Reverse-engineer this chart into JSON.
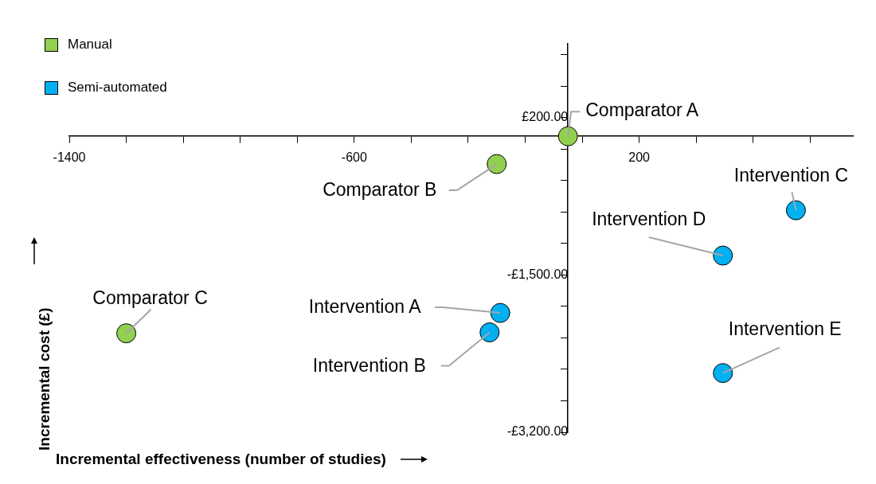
{
  "chart_data": {
    "type": "scatter",
    "xlabel": "Incremental effectiveness (number of studies)",
    "ylabel": "Incremental cost (£)",
    "series": [
      {
        "name": "Manual",
        "color": "#92d050",
        "x": [
          0,
          -200,
          -1240
        ],
        "values": [
          0,
          -300,
          -2130
        ]
      },
      {
        "name": "Semi-automated",
        "color": "#00b0f0",
        "x": [
          -190,
          -220,
          640,
          435,
          435
        ],
        "values": [
          -1910,
          -2120,
          -800,
          -1290,
          -2560
        ]
      }
    ],
    "xlim": [
      -1400,
      800
    ],
    "ylim": [
      -3200,
      1000
    ],
    "xticks": [
      -1400,
      {
        "value": -1240,
        "label": null
      },
      {
        "value": -1080,
        "label": null
      },
      {
        "value": -920,
        "label": null
      },
      {
        "value": -760,
        "label": null
      },
      -600,
      {
        "value": -440,
        "label": null
      },
      {
        "value": -280,
        "label": null
      },
      {
        "value": -120,
        "label": null
      },
      {
        "value": 40,
        "label": null
      },
      200,
      {
        "value": 360,
        "label": null
      },
      {
        "value": 520,
        "label": null
      },
      {
        "value": 680,
        "label": null
      }
    ],
    "yticks": [
      {
        "value": 880,
        "label": null
      },
      {
        "value": 540,
        "label": null
      },
      {
        "value": 200,
        "label": "£200.00"
      },
      {
        "value": -140,
        "label": null
      },
      {
        "value": -480,
        "label": null
      },
      {
        "value": -820,
        "label": null
      },
      {
        "value": -1160,
        "label": null
      },
      {
        "value": -1500,
        "label": "-£1,500.00"
      },
      {
        "value": -1840,
        "label": null
      },
      {
        "value": -2180,
        "label": null
      },
      {
        "value": -2520,
        "label": null
      },
      {
        "value": -2860,
        "label": null
      },
      {
        "value": -3200,
        "label": "-£3,200.00"
      }
    ],
    "annotations": [
      {
        "text": "Comparator A",
        "x": 0,
        "y": 0
      },
      {
        "text": "Comparator B",
        "x": -200,
        "y": -300
      },
      {
        "text": "Comparator C",
        "x": -1240,
        "y": -2130
      },
      {
        "text": "Intervention A",
        "x": -190,
        "y": -1910
      },
      {
        "text": "Intervention B",
        "x": -220,
        "y": -2120
      },
      {
        "text": "Intervention C",
        "x": 640,
        "y": -800
      },
      {
        "text": "Intervention D",
        "x": 435,
        "y": -1290
      },
      {
        "text": "Intervention E",
        "x": 435,
        "y": -2560
      }
    ],
    "grid": false,
    "legend": "top left",
    "marker": "circle"
  }
}
